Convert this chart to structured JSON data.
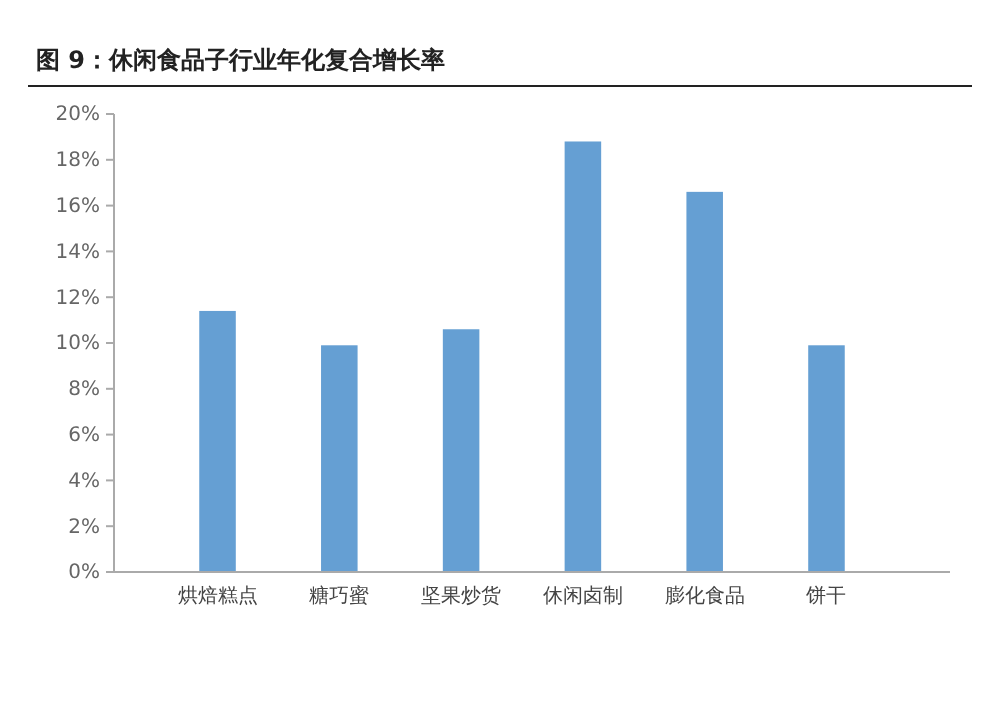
{
  "chart_data": {
    "type": "bar",
    "title": "图 9：休闲食品子行业年化复合增长率",
    "categories": [
      "烘焙糕点",
      "糖巧蜜",
      "坚果炒货",
      "休闲卤制",
      "膨化食品",
      "饼干"
    ],
    "values": [
      11.4,
      9.9,
      10.6,
      18.8,
      16.6,
      9.9
    ],
    "color": "#659fd3",
    "ylim": [
      0,
      20
    ],
    "yticks": [
      {
        "value": 0,
        "label": "0%"
      },
      {
        "value": 2,
        "label": "2%"
      },
      {
        "value": 4,
        "label": "4%"
      },
      {
        "value": 6,
        "label": "6%"
      },
      {
        "value": 8,
        "label": "8%"
      },
      {
        "value": 10,
        "label": "10%"
      },
      {
        "value": 12,
        "label": "12%"
      },
      {
        "value": 14,
        "label": "14%"
      },
      {
        "value": 16,
        "label": "16%"
      },
      {
        "value": 18,
        "label": "18%"
      },
      {
        "value": 20,
        "label": "20%"
      }
    ],
    "grid": false
  }
}
